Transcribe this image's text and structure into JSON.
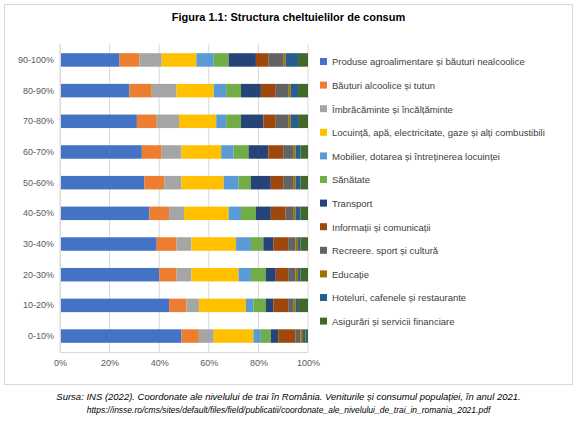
{
  "chart_data": {
    "type": "bar",
    "orientation": "horizontal",
    "stacked": true,
    "grid": true,
    "legend": "right",
    "title": "Figura 1.1: Structura cheltuielilor de consum",
    "annotations": [
      "Sursa: INS (2022). Coordonate ale nivelului de trai în România. Veniturile și consumul populației, în anul 2021.",
      "https://insse.ro/cms/sites/default/files/field/publicatii/coordonate_ale_nivelului_de_trai_in_romania_2021.pdf"
    ],
    "categories": [
      "90-100%",
      "80-90%",
      "70-80%",
      "60-70%",
      "50-60%",
      "40-50%",
      "30-40%",
      "20-30%",
      "10-20%",
      "0-10%"
    ],
    "xlim": [
      0,
      100
    ],
    "xticks": [
      {
        "value": 0,
        "label": "0%"
      },
      {
        "value": 20,
        "label": "20%"
      },
      {
        "value": 40,
        "label": "40%"
      },
      {
        "value": 60,
        "label": "60%"
      },
      {
        "value": 80,
        "label": "80%"
      },
      {
        "value": 100,
        "label": "100%"
      }
    ],
    "series": [
      {
        "name": "Produse agroalimentare și băuturi nealcoolice",
        "color": "#4472c4",
        "values": [
          24,
          28,
          31,
          33,
          34,
          36,
          39,
          40,
          44,
          49
        ]
      },
      {
        "name": "Băuturi alcoolice și tutun",
        "color": "#ed7d31",
        "values": [
          8,
          9,
          8,
          8,
          8,
          8,
          8,
          7,
          7,
          7
        ]
      },
      {
        "name": "Îmbrăcăminte și încălțăminte",
        "color": "#a5a5a5",
        "values": [
          9,
          10,
          9,
          8,
          7,
          6,
          6,
          6,
          5,
          6
        ]
      },
      {
        "name": "Locuință, apă, electricitate, gaze și alți combustibili",
        "color": "#ffc000",
        "values": [
          14,
          15,
          15,
          16,
          17,
          18,
          18,
          19,
          19,
          16
        ]
      },
      {
        "name": "Mobilier, dotarea și întreținerea locuinței",
        "color": "#5b9bd5",
        "values": [
          7,
          5,
          4,
          5,
          6,
          5,
          6,
          5,
          3,
          3
        ]
      },
      {
        "name": "Sănătate",
        "color": "#70ad47",
        "values": [
          6,
          6,
          6,
          6,
          5,
          6,
          5,
          6,
          5,
          4
        ]
      },
      {
        "name": "Transport",
        "color": "#264478",
        "values": [
          11,
          8,
          9,
          8,
          8,
          6,
          4,
          4,
          3,
          3
        ]
      },
      {
        "name": "Informații și comunicații",
        "color": "#9e480e",
        "values": [
          5,
          6,
          5,
          6,
          5,
          6,
          6,
          5,
          6,
          7
        ]
      },
      {
        "name": "Recreere. sport și cultură",
        "color": "#636363",
        "values": [
          6,
          5,
          5,
          4,
          4,
          3,
          3,
          3,
          2,
          2
        ]
      },
      {
        "name": "Educație",
        "color": "#997300",
        "values": [
          1,
          1,
          1,
          1,
          1,
          1,
          1,
          1,
          1,
          1
        ]
      },
      {
        "name": "Hoteluri, cafenele și restaurante",
        "color": "#255e91",
        "values": [
          5,
          3,
          3,
          2,
          2,
          2,
          1,
          1,
          1,
          1
        ]
      },
      {
        "name": "Asigurări și servicii financiare",
        "color": "#43682b",
        "values": [
          4,
          4,
          4,
          3,
          3,
          3,
          3,
          3,
          4,
          1
        ]
      }
    ]
  }
}
